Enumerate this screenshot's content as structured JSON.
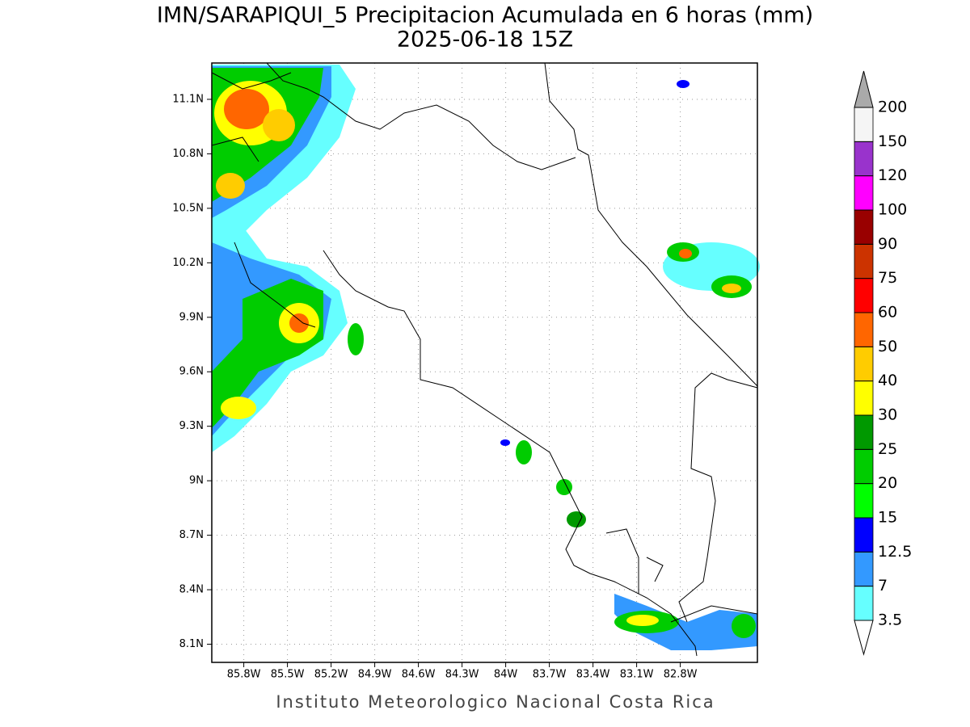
{
  "title": "IMN/SARAPIQUI_5 Precipitacion Acumulada en 6 horas (mm)",
  "subtitle": "2025-06-18 15Z",
  "map": {
    "xlim": [
      -86.02,
      -82.27
    ],
    "ylim": [
      8.0,
      11.3
    ],
    "xticks": [
      {
        "value": -85.8,
        "label": "85.8W"
      },
      {
        "value": -85.5,
        "label": "85.5W"
      },
      {
        "value": -85.2,
        "label": "85.2W"
      },
      {
        "value": -84.9,
        "label": "84.9W"
      },
      {
        "value": -84.6,
        "label": "84.6W"
      },
      {
        "value": -84.3,
        "label": "84.3W"
      },
      {
        "value": -84.0,
        "label": "84W"
      },
      {
        "value": -83.7,
        "label": "83.7W"
      },
      {
        "value": -83.4,
        "label": "83.4W"
      },
      {
        "value": -83.1,
        "label": "83.1W"
      },
      {
        "value": -82.8,
        "label": "82.8W"
      }
    ],
    "yticks": [
      {
        "value": 8.1,
        "label": "8.1N"
      },
      {
        "value": 8.4,
        "label": "8.4N"
      },
      {
        "value": 8.7,
        "label": "8.7N"
      },
      {
        "value": 9.0,
        "label": "9N"
      },
      {
        "value": 9.3,
        "label": "9.3N"
      },
      {
        "value": 9.6,
        "label": "9.6N"
      },
      {
        "value": 9.9,
        "label": "9.9N"
      },
      {
        "value": 10.2,
        "label": "10.2N"
      },
      {
        "value": 10.5,
        "label": "10.5N"
      },
      {
        "value": 10.8,
        "label": "10.8N"
      },
      {
        "value": 11.1,
        "label": "11.1N"
      }
    ],
    "grid": true
  },
  "colorbar": {
    "levels": [
      3.5,
      7,
      12.5,
      15,
      20,
      25,
      30,
      40,
      50,
      60,
      75,
      90,
      100,
      120,
      150,
      200
    ],
    "colors": [
      "#ffffff",
      "#66ffff",
      "#3399ff",
      "#0000ff",
      "#00ff00",
      "#00cc00",
      "#009900",
      "#ffff00",
      "#ffcc00",
      "#ff6600",
      "#ff0000",
      "#cc3300",
      "#990000",
      "#ff00ff",
      "#9933cc",
      "#f5f5f5",
      "#aaaaaa"
    ]
  },
  "footer": "Instituto Meteorologico Nacional Costa Rica"
}
